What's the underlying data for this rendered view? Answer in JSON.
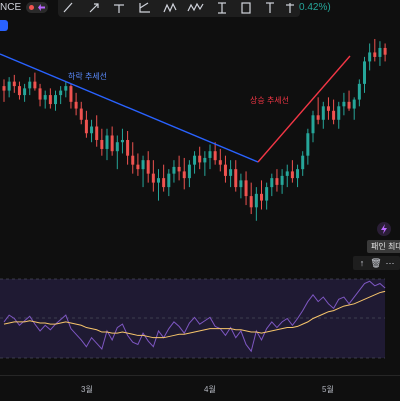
{
  "header": {
    "symbol_fragment": "NCE",
    "change_pct": "0.42%)"
  },
  "toolbar": {
    "tools": [
      "ray-tool",
      "arrow-tool",
      "horizontal-line-tool",
      "pitchfork-tool",
      "zigzag-tool",
      "wave-tool",
      "price-range-tool",
      "shape-tool",
      "text-tool",
      "anchor-tool"
    ]
  },
  "annotations": {
    "downtrend_label": "하락 추세선",
    "uptrend_label": "상승 추세선"
  },
  "floating": {
    "max_label": "패인 최대",
    "mini_buttons": [
      "↑",
      "🗑",
      "⋯"
    ]
  },
  "xaxis": {
    "months": [
      "3월",
      "4월",
      "5월"
    ]
  },
  "colors": {
    "bull": "#26a69a",
    "bear": "#ef5350",
    "downtrend": "#2962ff",
    "uptrend": "#f23645",
    "rsi": "#7e57c2",
    "rsi_ma": "#f7c56b",
    "rsi_band": "#1f1a33"
  },
  "chart_data": {
    "type": "candlestick",
    "candles": [
      [
        95,
        98,
        88,
        93
      ],
      [
        93,
        99,
        90,
        97
      ],
      [
        97,
        100,
        92,
        95
      ],
      [
        95,
        97,
        89,
        91
      ],
      [
        91,
        96,
        88,
        94
      ],
      [
        94,
        99,
        91,
        97
      ],
      [
        97,
        101,
        93,
        94
      ],
      [
        94,
        96,
        86,
        89
      ],
      [
        89,
        93,
        85,
        91
      ],
      [
        91,
        94,
        85,
        87
      ],
      [
        87,
        93,
        84,
        91
      ],
      [
        91,
        95,
        87,
        93
      ],
      [
        93,
        97,
        90,
        95
      ],
      [
        95,
        96,
        85,
        88
      ],
      [
        88,
        92,
        82,
        85
      ],
      [
        85,
        88,
        78,
        80
      ],
      [
        80,
        84,
        72,
        74
      ],
      [
        74,
        80,
        70,
        77
      ],
      [
        77,
        82,
        68,
        71
      ],
      [
        71,
        76,
        64,
        67
      ],
      [
        67,
        76,
        62,
        73
      ],
      [
        73,
        77,
        64,
        66
      ],
      [
        66,
        73,
        58,
        70
      ],
      [
        70,
        76,
        65,
        71
      ],
      [
        71,
        75,
        60,
        64
      ],
      [
        64,
        70,
        56,
        60
      ],
      [
        60,
        65,
        55,
        58
      ],
      [
        58,
        64,
        50,
        62
      ],
      [
        62,
        66,
        52,
        56
      ],
      [
        56,
        62,
        48,
        52
      ],
      [
        52,
        58,
        44,
        54
      ],
      [
        54,
        60,
        48,
        50
      ],
      [
        50,
        58,
        46,
        56
      ],
      [
        56,
        62,
        52,
        59
      ],
      [
        59,
        64,
        53,
        57
      ],
      [
        57,
        63,
        49,
        54
      ],
      [
        54,
        62,
        50,
        60
      ],
      [
        60,
        66,
        56,
        64
      ],
      [
        64,
        68,
        58,
        61
      ],
      [
        61,
        66,
        55,
        63
      ],
      [
        63,
        69,
        58,
        66
      ],
      [
        66,
        70,
        60,
        62
      ],
      [
        62,
        67,
        57,
        60
      ],
      [
        60,
        64,
        52,
        55
      ],
      [
        55,
        62,
        50,
        58
      ],
      [
        58,
        62,
        48,
        50
      ],
      [
        50,
        56,
        45,
        53
      ],
      [
        53,
        57,
        42,
        46
      ],
      [
        46,
        52,
        38,
        41
      ],
      [
        41,
        50,
        35,
        47
      ],
      [
        47,
        53,
        40,
        44
      ],
      [
        44,
        52,
        40,
        50
      ],
      [
        50,
        56,
        46,
        54
      ],
      [
        54,
        58,
        48,
        51
      ],
      [
        51,
        58,
        47,
        55
      ],
      [
        55,
        60,
        50,
        57
      ],
      [
        57,
        62,
        52,
        54
      ],
      [
        54,
        60,
        50,
        58
      ],
      [
        58,
        66,
        55,
        64
      ],
      [
        64,
        76,
        60,
        74
      ],
      [
        74,
        84,
        70,
        82
      ],
      [
        82,
        90,
        78,
        80
      ],
      [
        80,
        88,
        76,
        86
      ],
      [
        86,
        90,
        80,
        84
      ],
      [
        84,
        89,
        78,
        80
      ],
      [
        80,
        88,
        76,
        86
      ],
      [
        86,
        92,
        82,
        88
      ],
      [
        88,
        93,
        84,
        85
      ],
      [
        85,
        90,
        80,
        89
      ],
      [
        89,
        98,
        86,
        96
      ],
      [
        96,
        108,
        92,
        106
      ],
      [
        106,
        114,
        102,
        110
      ],
      [
        110,
        116,
        106,
        108
      ],
      [
        108,
        115,
        104,
        112
      ],
      [
        112,
        114,
        106,
        109
      ]
    ],
    "rsi": [
      52,
      58,
      55,
      49,
      53,
      57,
      50,
      44,
      49,
      45,
      50,
      54,
      58,
      46,
      41,
      36,
      30,
      38,
      33,
      28,
      44,
      36,
      47,
      50,
      40,
      34,
      32,
      42,
      35,
      30,
      44,
      38,
      46,
      52,
      48,
      42,
      51,
      56,
      50,
      53,
      56,
      48,
      46,
      40,
      47,
      38,
      44,
      32,
      26,
      44,
      36,
      46,
      52,
      47,
      52,
      55,
      49,
      55,
      62,
      70,
      76,
      70,
      74,
      68,
      64,
      72,
      74,
      68,
      74,
      80,
      86,
      88,
      84,
      86,
      82
    ],
    "rsi_ma": [
      50,
      51,
      52,
      52,
      52,
      53,
      52,
      51,
      51,
      50,
      50,
      51,
      52,
      51,
      50,
      49,
      47,
      46,
      45,
      43,
      43,
      42,
      42,
      43,
      42,
      41,
      40,
      40,
      39,
      38,
      38,
      38,
      39,
      40,
      41,
      41,
      42,
      43,
      44,
      45,
      46,
      46,
      46,
      46,
      46,
      45,
      45,
      44,
      43,
      43,
      42,
      43,
      44,
      45,
      46,
      47,
      47,
      48,
      50,
      52,
      55,
      57,
      59,
      61,
      62,
      64,
      66,
      67,
      68,
      70,
      72,
      74,
      76,
      78,
      79
    ]
  }
}
